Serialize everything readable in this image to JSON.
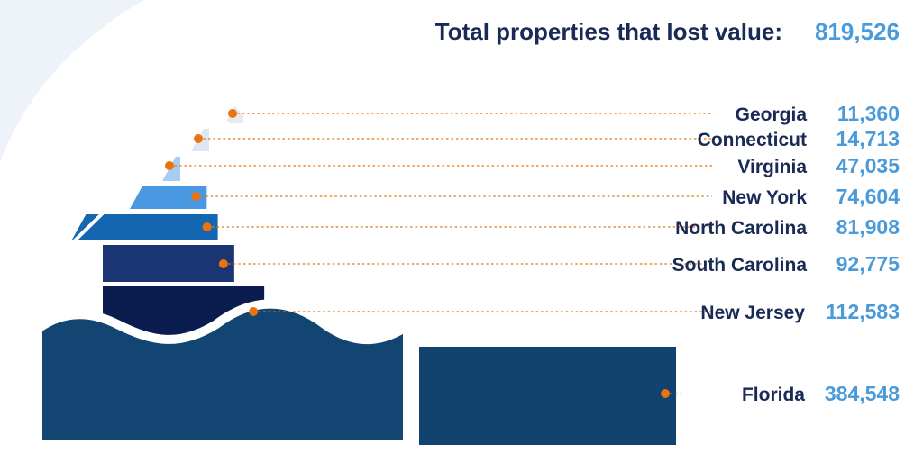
{
  "colors": {
    "navy_text": "#1a2a56",
    "blue_value": "#4a9ad9",
    "dot": "#e8730f",
    "bg_arc": "#eef3fa"
  },
  "chart_data": {
    "type": "bar",
    "title": "Total properties that lost value:",
    "total": "819,526",
    "categories": [
      "Georgia",
      "Connecticut",
      "Virginia",
      "New York",
      "North Carolina",
      "South Carolina",
      "New Jersey",
      "Florida"
    ],
    "values": [
      11360,
      14713,
      47035,
      74604,
      81908,
      92775,
      112583,
      384548
    ],
    "value_labels": [
      "11,360",
      "14,713",
      "47,035",
      "74,604",
      "81,908",
      "92,775",
      "112,583",
      "384,548"
    ],
    "bar_colors": [
      "#e6e9ee",
      "#dde7f4",
      "#a9cdf2",
      "#4a98e2",
      "#1566b0",
      "#1b3472",
      "#0b1d4e",
      "#12436f"
    ]
  }
}
